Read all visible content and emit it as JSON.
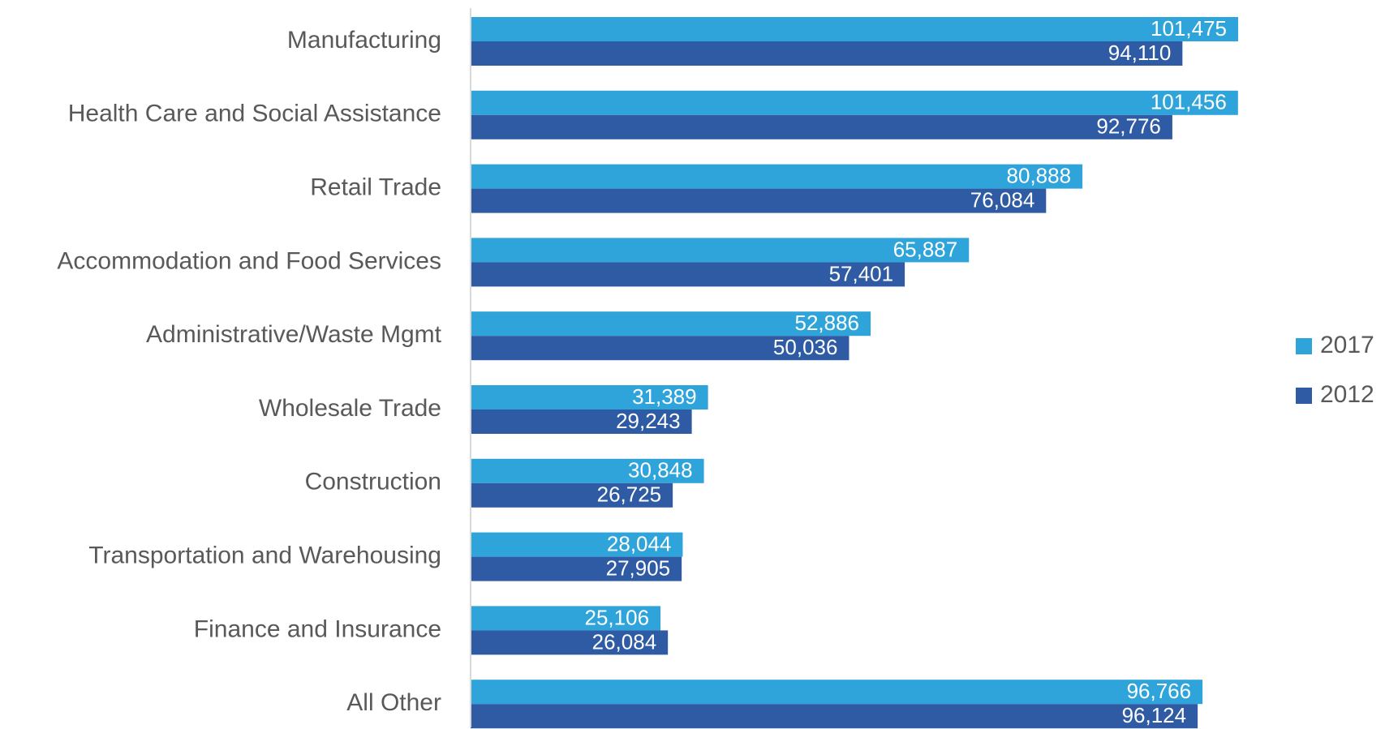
{
  "chart_data": {
    "type": "bar",
    "orientation": "horizontal",
    "categories": [
      "Manufacturing",
      "Health Care and Social Assistance",
      "Retail Trade",
      "Accommodation and Food Services",
      "Administrative/Waste Mgmt",
      "Wholesale Trade",
      "Construction",
      "Transportation and Warehousing",
      "Finance and Insurance",
      "All Other"
    ],
    "series": [
      {
        "name": "2017",
        "color": "#2fa4db",
        "values": [
          101475,
          101456,
          80888,
          65887,
          52886,
          31389,
          30848,
          28044,
          25106,
          96766
        ],
        "value_labels": [
          "101,475",
          "101,456",
          "80,888",
          "65,887",
          "52,886",
          "31,389",
          "30,848",
          "28,044",
          "25,106",
          "96,766"
        ]
      },
      {
        "name": "2012",
        "color": "#2e5ba4",
        "values": [
          94110,
          92776,
          76084,
          57401,
          50036,
          29243,
          26725,
          27905,
          26084,
          96124
        ],
        "value_labels": [
          "94,110",
          "92,776",
          "76,084",
          "57,401",
          "50,036",
          "29,243",
          "26,725",
          "27,905",
          "26,084",
          "96,124"
        ]
      }
    ],
    "legend": "right"
  }
}
